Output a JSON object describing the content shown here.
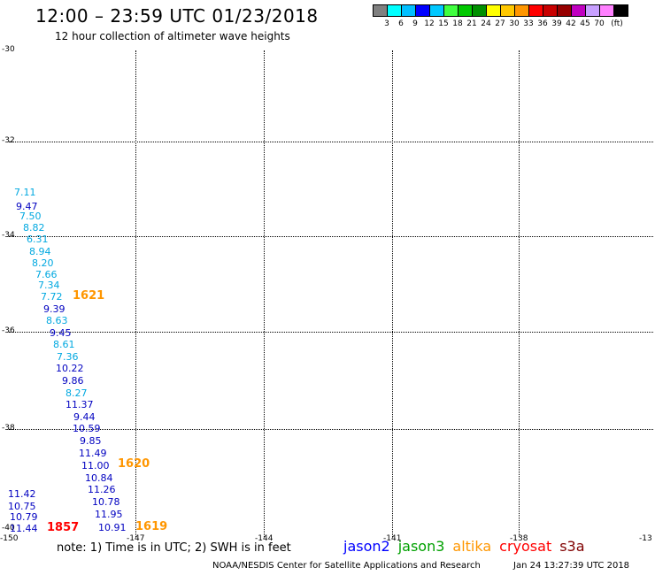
{
  "header": {
    "title": "12:00 – 23:59 UTC 01/23/2018",
    "subtitle": "12 hour collection of altimeter wave heights"
  },
  "color_legend": {
    "colors": [
      "#808080",
      "#00ffff",
      "#00bfff",
      "#0000ff",
      "#00c8ff",
      "#40ff40",
      "#00c800",
      "#009000",
      "#ffff00",
      "#ffc800",
      "#ff9600",
      "#ff0000",
      "#c80000",
      "#960000",
      "#c000c0",
      "#c8a0ff",
      "#ff80ff",
      "#000000"
    ],
    "labels": [
      "3",
      "6",
      "9",
      "12",
      "15",
      "18",
      "21",
      "24",
      "27",
      "30",
      "33",
      "36",
      "39",
      "42",
      "45",
      "70",
      "(ft)"
    ]
  },
  "map": {
    "lat_labels": [
      "-30",
      "-32",
      "-34",
      "-36",
      "-38",
      "-40"
    ],
    "lon_labels": [
      "-150",
      "-147",
      "-144",
      "-141",
      "-138",
      "-13"
    ],
    "wave_heights": [
      {
        "v": "7.11",
        "c": "#00a8e0"
      },
      {
        "v": "9.47",
        "c": "#0000c0"
      },
      {
        "v": "7.50",
        "c": "#00a8e0"
      },
      {
        "v": "8.82",
        "c": "#00a8e0"
      },
      {
        "v": "6.31",
        "c": "#00a8e0"
      },
      {
        "v": "8.94",
        "c": "#00a8e0"
      },
      {
        "v": "8.20",
        "c": "#00a8e0"
      },
      {
        "v": "7.66",
        "c": "#00a8e0"
      },
      {
        "v": "7.34",
        "c": "#00a8e0"
      },
      {
        "v": "7.72",
        "c": "#00a8e0"
      },
      {
        "v": "9.39",
        "c": "#0000c0"
      },
      {
        "v": "8.63",
        "c": "#00a8e0"
      },
      {
        "v": "9.45",
        "c": "#0000c0"
      },
      {
        "v": "8.61",
        "c": "#00a8e0"
      },
      {
        "v": "7.36",
        "c": "#00a8e0"
      },
      {
        "v": "10.22",
        "c": "#0000c0"
      },
      {
        "v": "9.86",
        "c": "#0000c0"
      },
      {
        "v": "8.27",
        "c": "#00a8e0"
      },
      {
        "v": "11.37",
        "c": "#0000c0"
      },
      {
        "v": "9.44",
        "c": "#0000c0"
      },
      {
        "v": "10.59",
        "c": "#0000c0"
      },
      {
        "v": "9.85",
        "c": "#0000c0"
      },
      {
        "v": "11.49",
        "c": "#0000c0"
      },
      {
        "v": "11.00",
        "c": "#0000c0"
      },
      {
        "v": "10.84",
        "c": "#0000c0"
      },
      {
        "v": "11.26",
        "c": "#0000c0"
      },
      {
        "v": "10.78",
        "c": "#0000c0"
      },
      {
        "v": "11.95",
        "c": "#0000c0"
      },
      {
        "v": "10.91",
        "c": "#0000c0"
      },
      {
        "v": "11.42",
        "c": "#0000c0"
      },
      {
        "v": "10.75",
        "c": "#0000c0"
      },
      {
        "v": "10.79",
        "c": "#0000c0"
      },
      {
        "v": "11.44",
        "c": "#0000c0"
      }
    ],
    "pass_times": [
      {
        "v": "1621",
        "c": "#ff9600"
      },
      {
        "v": "1620",
        "c": "#ff9600"
      },
      {
        "v": "1619",
        "c": "#ff9600"
      },
      {
        "v": "1857",
        "c": "#ff0000"
      }
    ]
  },
  "footer": {
    "note": "note: 1) Time is in UTC; 2) SWH is in feet",
    "satellites": [
      {
        "name": "jason2",
        "color": "#0000ff"
      },
      {
        "name": "jason3",
        "color": "#00a000"
      },
      {
        "name": "altika",
        "color": "#ff9600"
      },
      {
        "name": "cryosat",
        "color": "#ff0000"
      },
      {
        "name": "s3a",
        "color": "#800000"
      }
    ],
    "credit": "NOAA/NESDIS Center for Satellite Applications and Research",
    "timestamp": "Jan 24 13:27:39 UTC 2018"
  }
}
